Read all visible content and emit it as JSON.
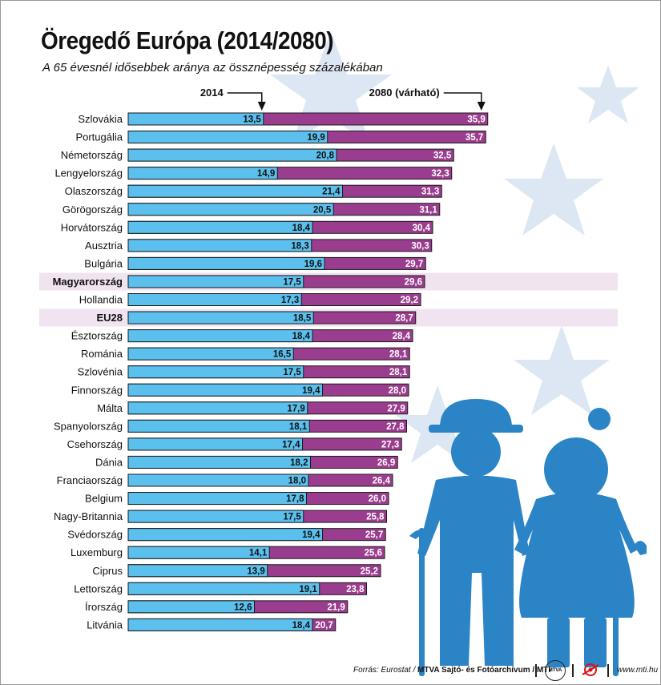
{
  "title": "Öregedő Európa (2014/2080)",
  "subtitle": "A 65 évesnél idősebbek aránya az össznépesség százalékában",
  "footer": {
    "source": "Forrás: Eurostat / ",
    "org": "MTVA Sajtó- és Fotóarchívum / MTI",
    "logo": "MTVA",
    "website": "www.mti.hu"
  },
  "colors": {
    "bar2014": "#5bc0ee",
    "bar2080": "#9b3d8e",
    "highlight": "#f0e4f0",
    "background": "#ffffff",
    "star": "#dde6f3",
    "figure": "#2b84c6"
  },
  "icons": [
    "elderly-man-icon",
    "elderly-woman-icon",
    "star-icon",
    "mtva-logo-icon",
    "mti-swirl-icon"
  ],
  "chart_data": {
    "type": "bar",
    "orientation": "horizontal",
    "title": "Öregedő Európa (2014/2080)",
    "subtitle": "A 65 évesnél idősebbek aránya az össznépesség százalékában",
    "series": [
      {
        "name": "2014",
        "values": [
          13.5,
          19.9,
          20.8,
          14.9,
          21.4,
          20.5,
          18.4,
          18.3,
          19.6,
          17.5,
          17.3,
          18.5,
          18.4,
          16.5,
          17.5,
          19.4,
          17.9,
          18.1,
          17.4,
          18.2,
          18.0,
          17.8,
          17.5,
          19.4,
          14.1,
          13.9,
          19.1,
          12.6,
          18.4
        ]
      },
      {
        "name": "2080 (várható)",
        "values": [
          35.9,
          35.7,
          32.5,
          32.3,
          31.3,
          31.1,
          30.4,
          30.3,
          29.7,
          29.6,
          29.2,
          28.7,
          28.4,
          28.1,
          28.1,
          28.0,
          27.9,
          27.8,
          27.3,
          26.9,
          26.4,
          26.0,
          25.8,
          25.7,
          25.6,
          25.2,
          23.8,
          21.9,
          20.7
        ]
      }
    ],
    "categories": [
      "Szlovákia",
      "Portugália",
      "Németország",
      "Lengyelország",
      "Olaszország",
      "Görögország",
      "Horvátország",
      "Ausztria",
      "Bulgária",
      "Magyarország",
      "Hollandia",
      "EU28",
      "Észtország",
      "Románia",
      "Szlovénia",
      "Finnország",
      "Málta",
      "Spanyolország",
      "Csehország",
      "Dánia",
      "Franciaország",
      "Belgium",
      "Nagy-Britannia",
      "Svédország",
      "Luxemburg",
      "Ciprus",
      "Lettország",
      "Írország",
      "Litvánia"
    ],
    "value_labels_2014": [
      "13,5",
      "19,9",
      "20,8",
      "14,9",
      "21,4",
      "20,5",
      "18,4",
      "18,3",
      "19,6",
      "17,5",
      "17,3",
      "18,5",
      "18,4",
      "16,5",
      "17,5",
      "19,4",
      "17,9",
      "18,1",
      "17,4",
      "18,2",
      "18,0",
      "17,8",
      "17,5",
      "19,4",
      "14,1",
      "13,9",
      "19,1",
      "12,6",
      "18,4"
    ],
    "value_labels_2080": [
      "35,9",
      "35,7",
      "32,5",
      "32,3",
      "31,3",
      "31,1",
      "30,4",
      "30,3",
      "29,7",
      "29,6",
      "29,2",
      "28,7",
      "28,4",
      "28,1",
      "28,1",
      "28,0",
      "27,9",
      "27,8",
      "27,3",
      "26,9",
      "26,4",
      "26,0",
      "25,8",
      "25,7",
      "25,6",
      "25,2",
      "23,8",
      "21,9",
      "20,7"
    ],
    "highlighted": [
      "Magyarország",
      "EU28"
    ],
    "xlim": [
      0,
      36
    ]
  }
}
